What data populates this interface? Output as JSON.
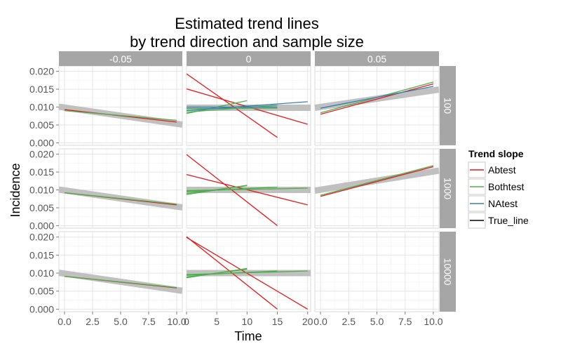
{
  "chart_data": {
    "type": "line",
    "title": [
      "Estimated trend lines",
      "by trend direction and sample size"
    ],
    "xlabel": "Time",
    "ylabel": "Incidence",
    "ylim": [
      -0.0007,
      0.0215
    ],
    "yticks": [
      0.0,
      0.005,
      0.01,
      0.015,
      0.02
    ],
    "ytick_labels": [
      "0.000",
      "0.005",
      "0.010",
      "0.015",
      "0.020"
    ],
    "grid": true,
    "col_facets": [
      "-0.05",
      "0",
      "0.05"
    ],
    "row_facets": [
      "100",
      "1000",
      "10000"
    ],
    "x_axes": [
      {
        "xlim": [
          -0.5,
          10.5
        ],
        "ticks": [
          0,
          2.5,
          5,
          7.5,
          10
        ],
        "tick_labels": [
          "0.0",
          "2.5",
          "5.0",
          "7.5",
          "10.0"
        ]
      },
      {
        "xlim": [
          0,
          20.5
        ],
        "ticks": [
          0,
          5,
          10,
          15,
          20
        ],
        "tick_labels": [
          "0",
          "5",
          "10",
          "15",
          "20"
        ]
      },
      {
        "xlim": [
          -0.5,
          10.5
        ],
        "ticks": [
          0,
          2.5,
          5,
          7.5,
          10
        ],
        "tick_labels": [
          "0.0",
          "2.5",
          "5.0",
          "7.5",
          "10.0"
        ]
      }
    ],
    "legend": {
      "title": "Trend slope",
      "position": "right",
      "entries": [
        {
          "name": "Abtest",
          "color": "#e41a1c"
        },
        {
          "name": "Bothtest",
          "color": "#4daf4a"
        },
        {
          "name": "NAtest",
          "color": "#377eb8"
        },
        {
          "name": "True_line",
          "color": "#000000"
        }
      ]
    },
    "panels": [
      {
        "row": 0,
        "col": 0,
        "true_line": {
          "x": [
            -0.5,
            10.5
          ],
          "y": [
            0.0101,
            0.0051
          ]
        },
        "lines": [
          {
            "series": "Abtest",
            "x": [
              0,
              10
            ],
            "y": [
              0.0093,
              0.0058
            ]
          },
          {
            "series": "Bothtest",
            "x": [
              0,
              10
            ],
            "y": [
              0.009,
              0.0063
            ]
          }
        ]
      },
      {
        "row": 0,
        "col": 1,
        "true_line": {
          "x": [
            0,
            20.5
          ],
          "y": [
            0.0098,
            0.0098
          ]
        },
        "lines": [
          {
            "series": "Abtest",
            "x": [
              0,
              15
            ],
            "y": [
              0.0193,
              0.0015
            ]
          },
          {
            "series": "Abtest",
            "x": [
              0,
              20
            ],
            "y": [
              0.0151,
              0.0052
            ]
          },
          {
            "series": "Bothtest",
            "x": [
              0,
              10
            ],
            "y": [
              0.0082,
              0.0118
            ]
          },
          {
            "series": "Bothtest",
            "x": [
              0,
              15
            ],
            "y": [
              0.0096,
              0.0097
            ]
          },
          {
            "series": "Bothtest",
            "x": [
              0,
              15
            ],
            "y": [
              0.0086,
              0.0105
            ]
          },
          {
            "series": "NAtest",
            "x": [
              0,
              20
            ],
            "y": [
              0.009,
              0.0115
            ]
          },
          {
            "series": "NAtest",
            "x": [
              0,
              15
            ],
            "y": [
              0.01,
              0.01
            ]
          }
        ]
      },
      {
        "row": 0,
        "col": 2,
        "true_line": {
          "x": [
            -0.5,
            10.5
          ],
          "y": [
            0.0098,
            0.0149
          ]
        },
        "lines": [
          {
            "series": "Abtest",
            "x": [
              0,
              10
            ],
            "y": [
              0.008,
              0.0165
            ]
          },
          {
            "series": "Bothtest",
            "x": [
              0,
              10
            ],
            "y": [
              0.0084,
              0.017
            ]
          },
          {
            "series": "NAtest",
            "x": [
              0,
              10
            ],
            "y": [
              0.0097,
              0.0158
            ]
          }
        ]
      },
      {
        "row": 1,
        "col": 0,
        "true_line": {
          "x": [
            -0.5,
            10.5
          ],
          "y": [
            0.0101,
            0.0051
          ]
        },
        "lines": [
          {
            "series": "Abtest",
            "x": [
              0,
              10
            ],
            "y": [
              0.0092,
              0.0058
            ]
          },
          {
            "series": "Bothtest",
            "x": [
              0,
              10
            ],
            "y": [
              0.0092,
              0.006
            ]
          }
        ]
      },
      {
        "row": 1,
        "col": 1,
        "true_line": {
          "x": [
            0,
            20.5
          ],
          "y": [
            0.01,
            0.01
          ]
        },
        "lines": [
          {
            "series": "Abtest",
            "x": [
              0,
              15
            ],
            "y": [
              0.0199,
              0.0
            ]
          },
          {
            "series": "Abtest",
            "x": [
              0,
              20
            ],
            "y": [
              0.0143,
              0.0058
            ]
          },
          {
            "series": "Bothtest",
            "x": [
              0,
              10
            ],
            "y": [
              0.009,
              0.0112
            ]
          },
          {
            "series": "Bothtest",
            "x": [
              0,
              15
            ],
            "y": [
              0.0095,
              0.0108
            ]
          },
          {
            "series": "Bothtest",
            "x": [
              0,
              20
            ],
            "y": [
              0.0098,
              0.0105
            ]
          },
          {
            "series": "Bothtest",
            "x": [
              0,
              10
            ],
            "y": [
              0.0087,
              0.0113
            ]
          }
        ]
      },
      {
        "row": 1,
        "col": 2,
        "true_line": {
          "x": [
            -0.5,
            10.5
          ],
          "y": [
            0.0098,
            0.0154
          ]
        },
        "lines": [
          {
            "series": "Abtest",
            "x": [
              0,
              10
            ],
            "y": [
              0.0082,
              0.0165
            ]
          },
          {
            "series": "Bothtest",
            "x": [
              0,
              10
            ],
            "y": [
              0.0085,
              0.0168
            ]
          }
        ]
      },
      {
        "row": 2,
        "col": 0,
        "true_line": {
          "x": [
            -0.5,
            10.5
          ],
          "y": [
            0.0101,
            0.0051
          ]
        },
        "lines": [
          {
            "series": "Abtest",
            "x": [
              0,
              10
            ],
            "y": [
              0.0091,
              0.0059
            ]
          },
          {
            "series": "Bothtest",
            "x": [
              0,
              10
            ],
            "y": [
              0.0091,
              0.006
            ]
          }
        ]
      },
      {
        "row": 2,
        "col": 1,
        "true_line": {
          "x": [
            0,
            20.5
          ],
          "y": [
            0.01,
            0.01
          ]
        },
        "lines": [
          {
            "series": "Abtest",
            "x": [
              0,
              15
            ],
            "y": [
              0.0201,
              0.0
            ]
          },
          {
            "series": "Abtest",
            "x": [
              0,
              20
            ],
            "y": [
              0.0199,
              0.0
            ]
          },
          {
            "series": "Bothtest",
            "x": [
              0,
              10
            ],
            "y": [
              0.0089,
              0.0111
            ]
          },
          {
            "series": "Bothtest",
            "x": [
              0,
              15
            ],
            "y": [
              0.0094,
              0.0106
            ]
          },
          {
            "series": "Bothtest",
            "x": [
              0,
              20
            ],
            "y": [
              0.0096,
              0.0106
            ]
          },
          {
            "series": "Bothtest",
            "x": [
              0,
              10
            ],
            "y": [
              0.0087,
              0.0113
            ]
          }
        ]
      },
      {
        "row": 2,
        "col": 2,
        "true_line": null,
        "lines": []
      }
    ]
  }
}
